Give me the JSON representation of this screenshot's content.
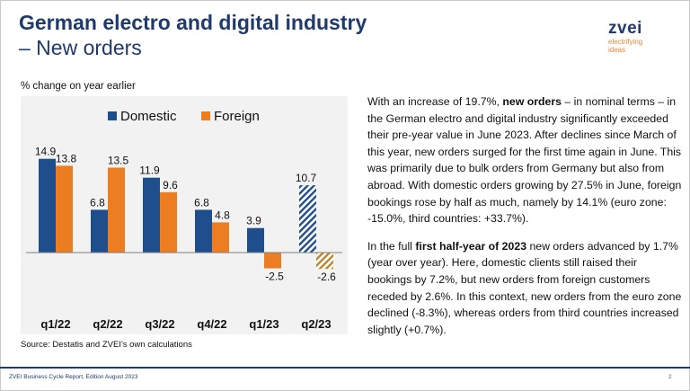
{
  "title_line1": "German electro and digital industry",
  "title_line2": "– New orders",
  "logo": {
    "word": "zvei",
    "tagline_1": "electrifying",
    "tagline_2": "ideas"
  },
  "chart_subtitle": "% change on year earlier",
  "source": "Source: Destatis and ZVEI's own calculations",
  "footer": "ZVEI Business Cycle Report, Edition August 2023",
  "page_number": "2",
  "colors": {
    "domestic": "#1f4e8c",
    "foreign": "#ed7d21",
    "title": "#1f3a6b"
  },
  "chart_data": {
    "type": "bar",
    "categories": [
      "q1/22",
      "q2/22",
      "q3/22",
      "q4/22",
      "q1/23",
      "q2/23"
    ],
    "series": [
      {
        "name": "Domestic",
        "values": [
          14.9,
          6.8,
          11.9,
          6.8,
          3.9,
          10.7
        ]
      },
      {
        "name": "Foreign",
        "values": [
          13.8,
          13.5,
          9.6,
          4.8,
          -2.5,
          -2.6
        ]
      }
    ],
    "data_labels": [
      [
        "14.9",
        "6.8",
        "11.9",
        "6.8",
        "3.9",
        "10.7"
      ],
      [
        "13.8",
        "13.5",
        "9.6",
        "4.8",
        "-2.5",
        "-2.6"
      ]
    ],
    "hatched_category": "q2/23",
    "ylim": [
      -5,
      17
    ],
    "legend_position": "top",
    "grid": false
  },
  "paragraph1": [
    {
      "text": "With an increase of 19.7%, ",
      "bold": false
    },
    {
      "text": "new orders",
      "bold": true
    },
    {
      "text": " – in nominal terms – in the German electro and digital industry significantly exceeded their pre-year value in June 2023. After declines since March of this year, new orders surged for the first time again in June. This was primarily due to bulk orders from Germany but also from abroad. With domestic orders growing by 27.5% in June, foreign bookings rose by half as much, namely by 14.1% (euro zone: -15.0%, third countries: +33.7%).",
      "bold": false
    }
  ],
  "paragraph2": [
    {
      "text": "In the full ",
      "bold": false
    },
    {
      "text": "first half-year of 2023",
      "bold": true
    },
    {
      "text": " new orders advanced by 1.7% (year over year). Here, domestic clients still raised their bookings by 7.2%, but new orders from foreign customers receded by 2.6%. In this context, new orders from the euro zone declined (-8.3%), whereas orders from third countries increased slightly (+0.7%).",
      "bold": false
    }
  ]
}
